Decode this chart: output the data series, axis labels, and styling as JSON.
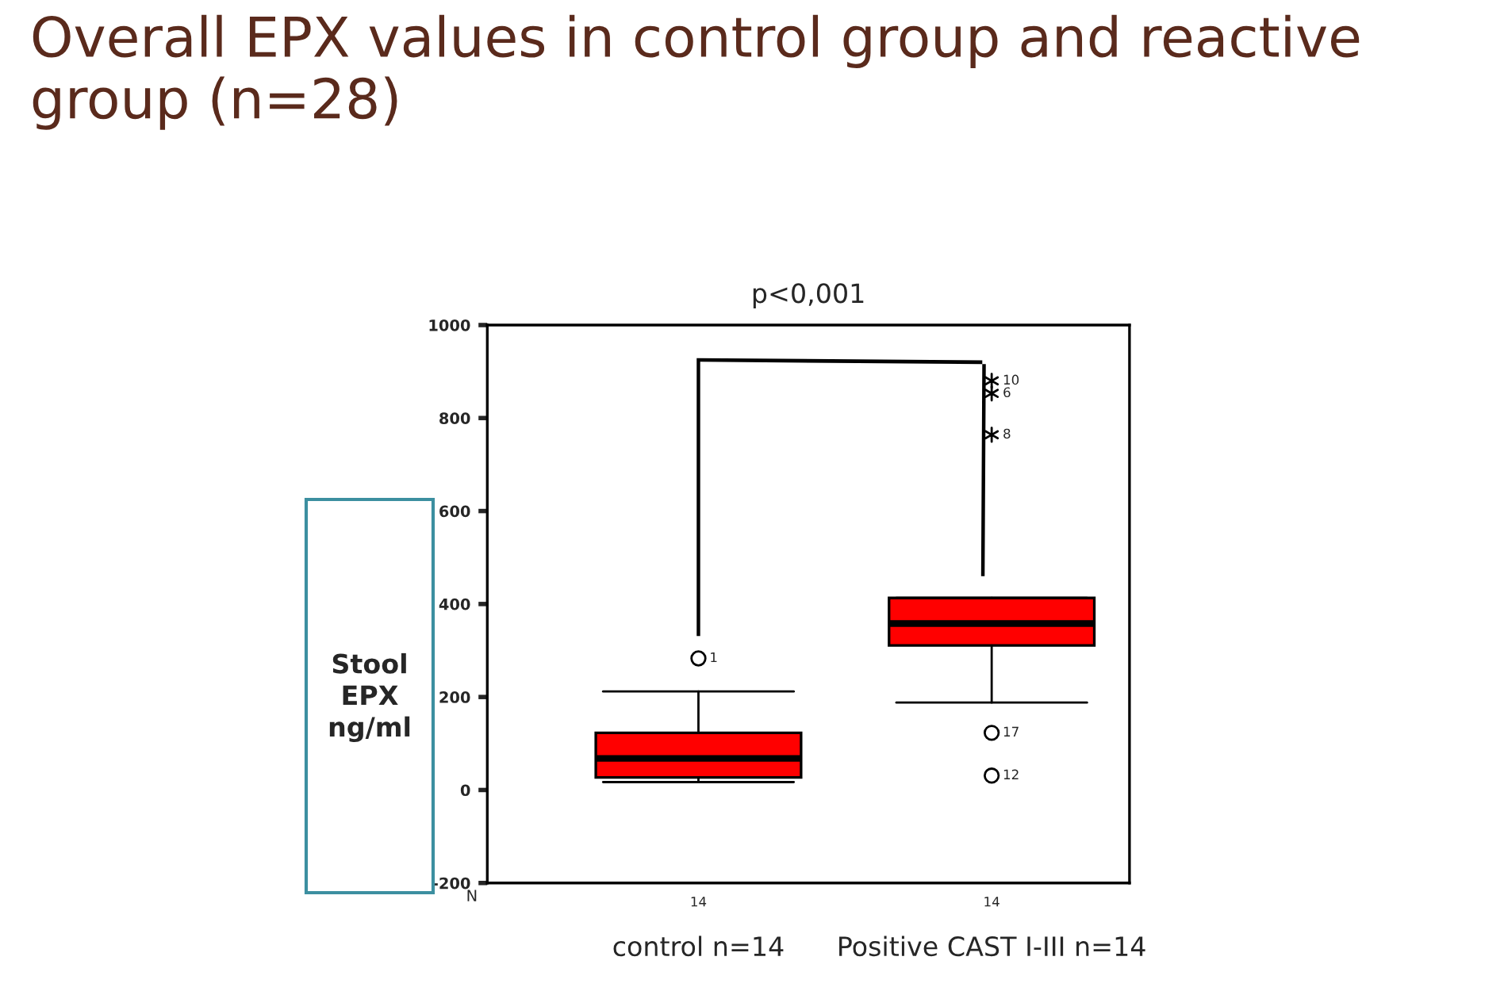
{
  "chart_data": {
    "type": "box",
    "title": "Overall EPX values in control group and reactive group (n=28)",
    "ylabel": "Stool EPX ng/ml",
    "categories": [
      "control n=14",
      "Positive CAST I-III n=14"
    ],
    "series": [
      {
        "color": "#ff0000",
        "boxes": [
          {
            "low": 17,
            "q1": 27,
            "median": 68,
            "q3": 123,
            "high": 212,
            "outliers": [
              283
            ]
          },
          {
            "low": 188,
            "q1": 311,
            "median": 358,
            "q3": 413,
            "high": 413,
            "outliers": [
              123,
              31,
              880,
              853,
              764
            ]
          }
        ]
      }
    ],
    "ylim": [
      -200,
      1000
    ],
    "yticks": [
      -200,
      0,
      200,
      400,
      600,
      800,
      1000
    ],
    "grid": false,
    "annotations": [
      "p<0,001",
      "N",
      "14",
      "14",
      "1",
      "17",
      "12",
      "10",
      "6",
      "8"
    ]
  }
}
